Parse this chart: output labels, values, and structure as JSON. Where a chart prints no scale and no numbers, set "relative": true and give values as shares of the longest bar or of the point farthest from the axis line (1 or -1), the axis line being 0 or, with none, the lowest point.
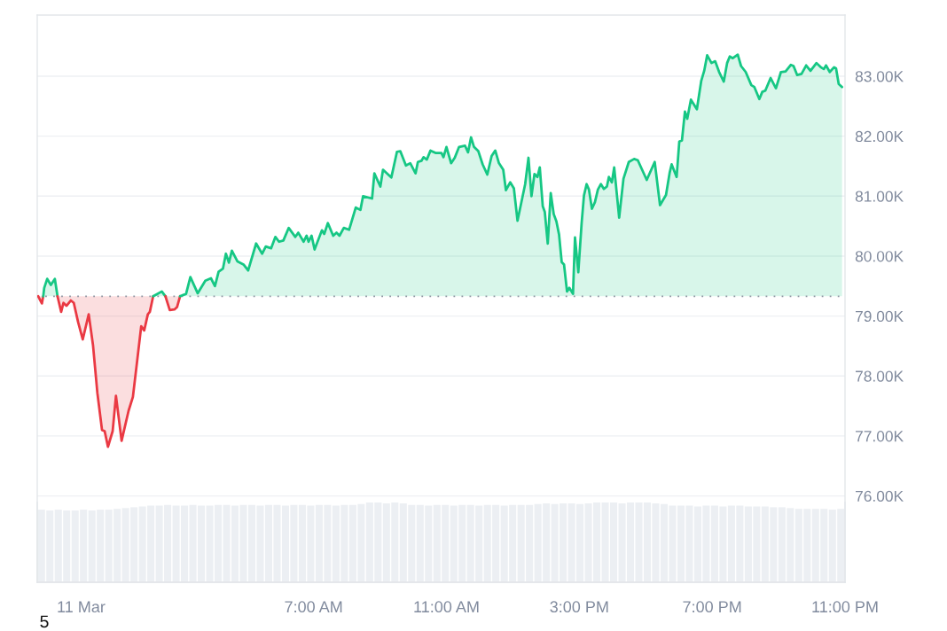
{
  "chart_data": [
    {
      "type": "area",
      "series": [
        {
          "type": "line",
          "color": "#ea3943",
          "x": [
            -1.29,
            -1.18,
            -1.14
          ],
          "values": [
            79330,
            79210,
            79330
          ],
          "lower": [
            79330,
            79210,
            79330
          ],
          "upper": [
            79330,
            79330,
            79330
          ]
        },
        {
          "color": "#16c784",
          "x": [
            -1.14,
            -1.11,
            -1.02,
            -0.91,
            -0.79,
            -0.71
          ],
          "values": [
            79330,
            79470,
            79620,
            79520,
            79620,
            79330
          ]
        },
        {
          "type": "line",
          "color": "#ea3943",
          "x": [
            -0.71,
            -0.6,
            -0.53,
            -0.44,
            -0.31,
            -0.22,
            -0.09,
            0.05,
            0.23,
            0.36,
            0.49,
            0.63,
            0.71,
            0.81,
            0.95,
            1.05,
            1.22,
            1.43,
            1.56,
            1.69,
            1.81,
            1.9,
            2.01,
            2.07,
            2.17
          ],
          "values": [
            79330,
            79070,
            79220,
            79170,
            79260,
            79220,
            78900,
            78610,
            79030,
            78510,
            77720,
            77100,
            77080,
            76820,
            77080,
            77670,
            76920,
            77420,
            77650,
            78260,
            78830,
            78760,
            79030,
            79070,
            79330
          ],
          "lower": [
            79330,
            79070,
            79220,
            79170,
            79260,
            79220,
            78900,
            78610,
            79030,
            78510,
            77720,
            77100,
            77080,
            76820,
            77080,
            77670,
            76920,
            77420,
            77650,
            78260,
            78830,
            78760,
            79030,
            79070,
            79330
          ],
          "upper": [
            79330,
            79330,
            79330,
            79330,
            79330,
            79330,
            79330,
            79330,
            79330,
            79330,
            79330,
            79330,
            79330,
            79330,
            79330,
            79330,
            79330,
            79330,
            79330,
            79330,
            79330,
            79330,
            79330,
            79330,
            79330
          ]
        },
        {
          "color": "#16c784",
          "x": [
            2.17,
            2.27,
            2.43,
            2.54
          ],
          "values": [
            79330,
            79360,
            79410,
            79330
          ]
        },
        {
          "type": "line",
          "color": "#ea3943",
          "x": [
            2.54,
            2.67,
            2.81,
            2.89,
            2.98
          ],
          "values": [
            79330,
            79100,
            79110,
            79150,
            79330
          ],
          "lower": [
            79330,
            79100,
            79110,
            79150,
            79330
          ],
          "upper": [
            79330,
            79330,
            79330,
            79330,
            79330
          ]
        },
        {
          "color": "#16c784",
          "x": [
            2.98,
            3.16,
            3.29,
            3.51,
            3.74,
            3.91,
            4.03,
            4.14,
            4.27,
            4.36,
            4.45,
            4.54,
            4.71,
            4.89,
            5.03,
            5.27,
            5.45,
            5.56,
            5.72,
            5.85,
            5.96,
            6.09,
            6.25,
            6.45,
            6.54,
            6.7,
            6.79,
            6.85,
            6.94,
            7.03,
            7.25,
            7.32,
            7.43,
            7.59,
            7.69,
            7.78,
            7.91,
            8.07,
            8.27,
            8.41,
            8.49,
            8.76,
            8.83,
            9.01,
            9.09,
            9.34,
            9.51,
            9.61,
            9.78,
            9.91,
            10.07,
            10.14,
            10.25,
            10.31,
            10.41,
            10.52,
            10.67,
            10.85,
            10.91,
            11.0,
            11.14,
            11.25,
            11.38,
            11.56,
            11.65,
            11.74,
            11.83,
            11.96,
            12.09,
            12.23,
            12.36,
            12.47,
            12.58,
            12.71,
            12.79,
            12.92,
            13.03,
            13.14,
            13.37,
            13.47,
            13.56,
            13.65,
            13.74,
            13.81,
            13.9,
            13.96,
            14.05,
            14.14,
            14.23,
            14.31,
            14.39,
            14.47,
            14.54,
            14.63,
            14.7,
            14.81,
            14.87,
            14.97,
            15.07,
            15.14,
            15.22,
            15.29,
            15.38,
            15.47,
            15.56,
            15.65,
            15.74,
            15.83,
            15.89,
            15.98,
            16.05,
            16.2,
            16.33,
            16.49,
            16.65,
            16.76,
            17.03,
            17.27,
            17.43,
            17.61,
            17.72,
            17.78,
            17.93,
            18.01,
            18.09,
            18.18,
            18.25,
            18.36,
            18.54,
            18.67,
            18.76,
            18.85,
            18.98,
            19.09,
            19.21,
            19.35,
            19.45,
            19.53,
            19.62,
            19.77,
            19.87,
            20.01,
            20.18,
            20.27,
            20.42,
            20.51,
            20.6,
            20.76,
            20.92,
            21.07,
            21.21,
            21.37,
            21.45,
            21.56,
            21.69,
            21.83,
            21.96,
            22.14,
            22.27,
            22.36,
            22.43,
            22.54,
            22.67,
            22.73,
            22.81,
            22.91
          ],
          "values": [
            79330,
            79370,
            79650,
            79380,
            79590,
            79630,
            79500,
            79740,
            79790,
            80040,
            79890,
            80090,
            79910,
            79860,
            79760,
            80210,
            80040,
            80160,
            80130,
            80320,
            80240,
            80260,
            80470,
            80320,
            80390,
            80240,
            80340,
            80240,
            80340,
            80110,
            80430,
            80370,
            80550,
            80340,
            80390,
            80340,
            80470,
            80440,
            80810,
            80770,
            81000,
            80960,
            81380,
            81160,
            81440,
            81310,
            81740,
            81750,
            81510,
            81550,
            81380,
            81570,
            81590,
            81650,
            81610,
            81760,
            81720,
            81720,
            81650,
            81820,
            81550,
            81640,
            81820,
            81840,
            81730,
            81980,
            81820,
            81750,
            81530,
            81360,
            81670,
            81760,
            81550,
            81440,
            81100,
            81230,
            81130,
            80590,
            81200,
            81640,
            81000,
            81370,
            81320,
            81480,
            80830,
            80740,
            80210,
            81050,
            80700,
            80580,
            80360,
            79900,
            79860,
            79410,
            79470,
            79370,
            80310,
            79730,
            80550,
            81010,
            81200,
            81110,
            80790,
            80900,
            81110,
            81200,
            81120,
            81160,
            81320,
            81230,
            81480,
            80640,
            81290,
            81570,
            81620,
            81600,
            81270,
            81570,
            80850,
            81020,
            81390,
            81530,
            81320,
            81910,
            81930,
            82410,
            82290,
            82610,
            82450,
            82920,
            83090,
            83350,
            83220,
            83250,
            83070,
            82910,
            83220,
            83330,
            83300,
            83360,
            83170,
            83070,
            82850,
            82820,
            82620,
            82740,
            82760,
            82970,
            82800,
            83070,
            83080,
            83190,
            83170,
            83020,
            83040,
            83180,
            83090,
            83220,
            83150,
            83120,
            83180,
            83070,
            83150,
            83130,
            82870,
            82820
          ]
        }
      ],
      "xlim": [
        -1.32,
        23.0
      ],
      "xticks": [
        {
          "value": 0,
          "label": "11 Mar"
        },
        {
          "value": 7,
          "label": "7:00 AM"
        },
        {
          "value": 11,
          "label": "11:00 AM"
        },
        {
          "value": 15,
          "label": "3:00 PM"
        },
        {
          "value": 19,
          "label": "7:00 PM"
        },
        {
          "value": 23,
          "label": "11:00 PM"
        }
      ],
      "ylim": [
        74560,
        84020
      ],
      "yticks": [
        {
          "value": 76000,
          "label": "76.00K"
        },
        {
          "value": 77000,
          "label": "77.00K"
        },
        {
          "value": 78000,
          "label": "78.00K"
        },
        {
          "value": 79000,
          "label": "79.00K"
        },
        {
          "value": 80000,
          "label": "80.00K"
        },
        {
          "value": 81000,
          "label": "81.00K"
        },
        {
          "value": 82000,
          "label": "82.00K"
        },
        {
          "value": 83000,
          "label": "83.00K"
        }
      ],
      "ref_lines": [
        {
          "axis": "y",
          "value": 79330,
          "line_style": "dotted",
          "color": "#8f97a3"
        }
      ],
      "grid": "y",
      "annotations": [
        "5"
      ]
    },
    {
      "type": "bar",
      "relative": true,
      "tick_labels": false,
      "color": "#eceff3",
      "categories": [
        null,
        null,
        null,
        null,
        null,
        null,
        null,
        null,
        null,
        null,
        null,
        null,
        null,
        null,
        null,
        null,
        null,
        null,
        null,
        null,
        null,
        null,
        null,
        null,
        null,
        null,
        null,
        null,
        null,
        null,
        null,
        null,
        null,
        null,
        null,
        null,
        null,
        null,
        null,
        null,
        null,
        null,
        null,
        null,
        null,
        null,
        null,
        null,
        null,
        null,
        null,
        null,
        null,
        null,
        null,
        null,
        null,
        null,
        null,
        null,
        null,
        null,
        null,
        null,
        null,
        null,
        null,
        null,
        null,
        null,
        null,
        null,
        null,
        null,
        null,
        null,
        null,
        null,
        null,
        null,
        null,
        null,
        null,
        null,
        null,
        null,
        null,
        null,
        null,
        null,
        null,
        null,
        null,
        null,
        null,
        null
      ],
      "values": [
        0.91,
        0.9,
        0.91,
        0.9,
        0.9,
        0.91,
        0.9,
        0.91,
        0.91,
        0.92,
        0.93,
        0.94,
        0.95,
        0.96,
        0.96,
        0.97,
        0.96,
        0.96,
        0.97,
        0.96,
        0.96,
        0.97,
        0.97,
        0.96,
        0.97,
        0.97,
        0.96,
        0.97,
        0.97,
        0.96,
        0.97,
        0.97,
        0.96,
        0.97,
        0.97,
        0.96,
        0.97,
        0.97,
        0.98,
        1.0,
        1.0,
        0.99,
        1.0,
        0.99,
        0.97,
        0.97,
        0.96,
        0.97,
        0.97,
        0.96,
        0.97,
        0.97,
        0.96,
        0.97,
        0.97,
        0.96,
        0.97,
        0.97,
        0.97,
        0.98,
        0.99,
        0.98,
        0.99,
        0.99,
        0.98,
        0.99,
        1.0,
        1.0,
        1.0,
        0.99,
        1.0,
        1.0,
        1.0,
        0.99,
        0.98,
        0.96,
        0.96,
        0.96,
        0.95,
        0.96,
        0.96,
        0.95,
        0.96,
        0.96,
        0.95,
        0.95,
        0.95,
        0.94,
        0.94,
        0.93,
        0.92,
        0.92,
        0.92,
        0.92,
        0.91,
        0.92
      ]
    }
  ]
}
